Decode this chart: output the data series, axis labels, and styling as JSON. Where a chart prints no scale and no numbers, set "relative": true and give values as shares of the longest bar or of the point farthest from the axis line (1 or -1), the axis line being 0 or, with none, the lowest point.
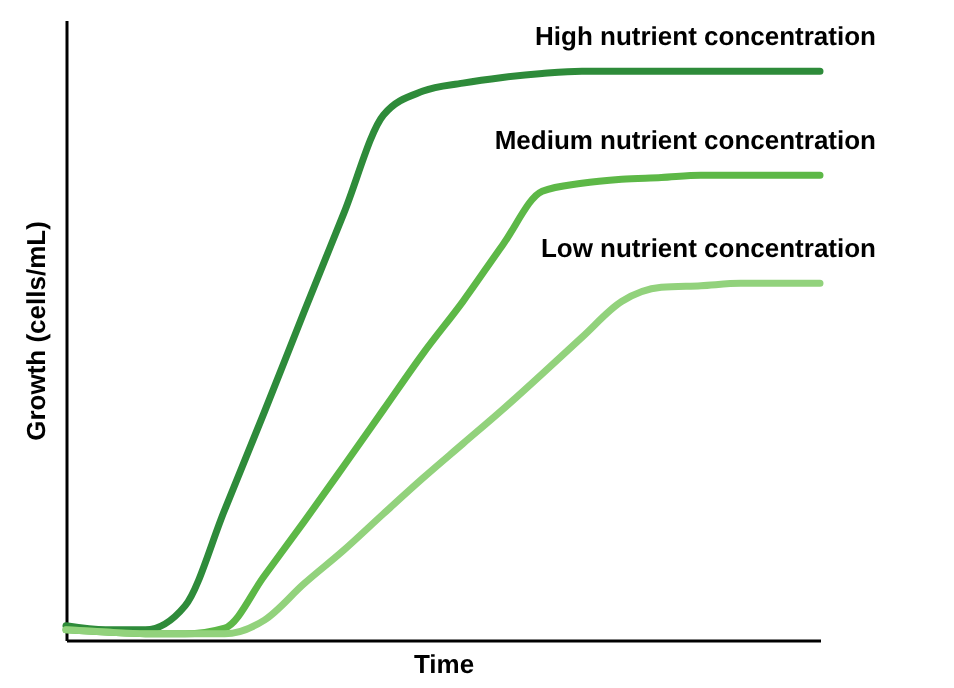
{
  "chart_data": {
    "type": "line",
    "relative": true,
    "xlabel": "Time",
    "ylabel": "Growth (cells/mL)",
    "tick_labels": false,
    "grid": false,
    "marker": "none",
    "line_style": "solid",
    "categories": [
      null,
      null,
      null,
      null,
      null,
      null,
      null,
      null,
      null,
      null,
      null,
      null,
      null,
      null,
      null,
      null,
      null,
      null,
      null,
      null
    ],
    "series": [
      {
        "name": "High nutrient concentration",
        "color": "#2e8b3a",
        "values": [
          0.025,
          0.018,
          0.018,
          0.06,
          0.229,
          0.401,
          0.577,
          0.75,
          0.923,
          0.965,
          0.979,
          0.989,
          0.996,
          1,
          1,
          1,
          1,
          1,
          1,
          1
        ]
      },
      {
        "name": "Medium nutrient concentration",
        "color": "#5db847",
        "values": [
          0.018,
          0.014,
          0.011,
          0.011,
          0.021,
          0.113,
          0.208,
          0.306,
          0.405,
          0.504,
          0.595,
          0.694,
          0.789,
          0.803,
          0.81,
          0.813,
          0.817,
          0.817,
          0.817,
          0.817
        ]
      },
      {
        "name": "Low nutrient concentration",
        "color": "#92d27c",
        "values": [
          0.018,
          0.014,
          0.011,
          0.011,
          0.011,
          0.035,
          0.099,
          0.158,
          0.222,
          0.285,
          0.345,
          0.405,
          0.468,
          0.532,
          0.595,
          0.62,
          0.623,
          0.627,
          0.627,
          0.627
        ]
      }
    ]
  }
}
